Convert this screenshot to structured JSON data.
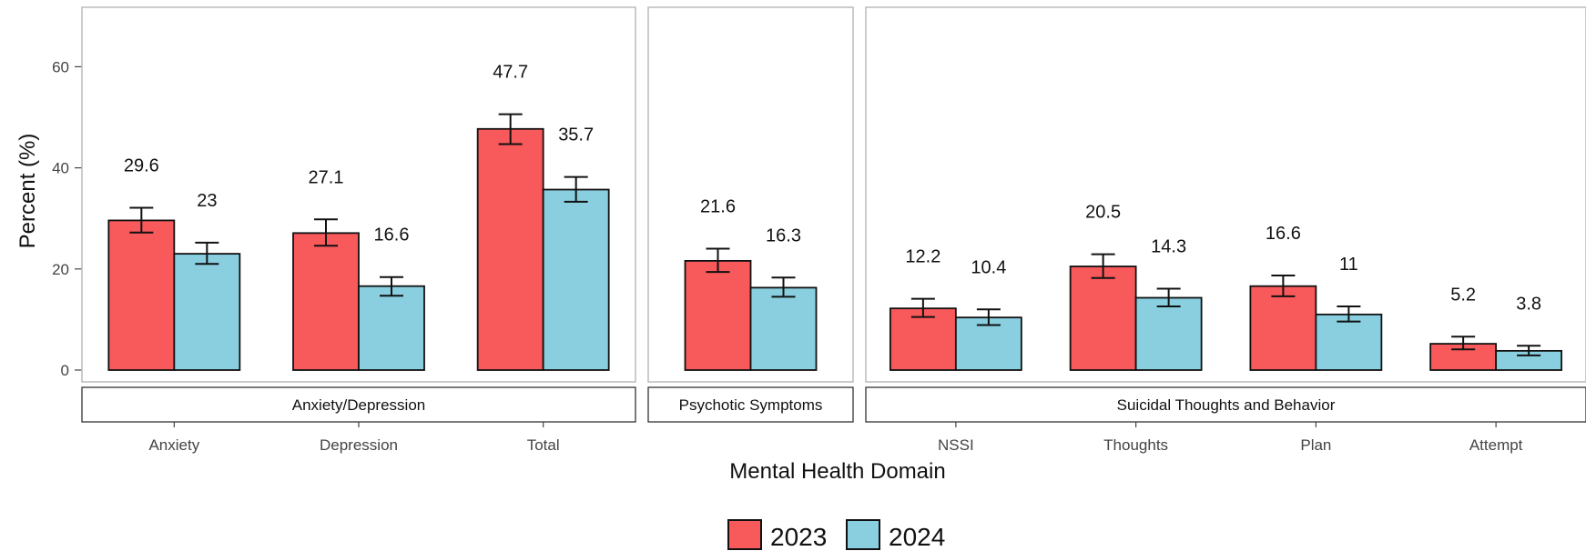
{
  "chart_data": {
    "type": "bar",
    "xlabel": "Mental Health Domain",
    "ylabel": "Percent (%)",
    "ylim": [
      0,
      60
    ],
    "yticks": [
      0,
      20,
      40,
      60
    ],
    "grid": false,
    "legend_position": "bottom",
    "colors": {
      "2023": "#f8595a",
      "2024": "#89cfe0"
    },
    "series": [
      {
        "name": "2023",
        "color": "#f8595a"
      },
      {
        "name": "2024",
        "color": "#89cfe0"
      }
    ],
    "panels": [
      {
        "label": "Anxiety/Depression",
        "categories": [
          {
            "name": "Anxiety",
            "values": [
              29.6,
              23
            ],
            "error": [
              [
                27.2,
                32.1
              ],
              [
                21.0,
                25.2
              ]
            ],
            "labels": [
              "29.6",
              "23"
            ]
          },
          {
            "name": "Depression",
            "values": [
              27.1,
              16.6
            ],
            "error": [
              [
                24.6,
                29.8
              ],
              [
                14.7,
                18.4
              ]
            ],
            "labels": [
              "27.1",
              "16.6"
            ]
          },
          {
            "name": "Total",
            "values": [
              47.7,
              35.7
            ],
            "error": [
              [
                44.7,
                50.6
              ],
              [
                33.3,
                38.2
              ]
            ],
            "labels": [
              "47.7",
              "35.7"
            ]
          }
        ]
      },
      {
        "label": "Psychotic Symptoms",
        "categories": [
          {
            "name": "",
            "values": [
              21.6,
              16.3
            ],
            "error": [
              [
                19.4,
                24.0
              ],
              [
                14.5,
                18.3
              ]
            ],
            "labels": [
              "21.6",
              "16.3"
            ]
          }
        ]
      },
      {
        "label": "Suicidal Thoughts and Behavior",
        "categories": [
          {
            "name": "NSSI",
            "values": [
              12.2,
              10.4
            ],
            "error": [
              [
                10.5,
                14.1
              ],
              [
                8.9,
                12.0
              ]
            ],
            "labels": [
              "12.2",
              "10.4"
            ]
          },
          {
            "name": "Thoughts",
            "values": [
              20.5,
              14.3
            ],
            "error": [
              [
                18.2,
                22.9
              ],
              [
                12.6,
                16.1
              ]
            ],
            "labels": [
              "20.5",
              "14.3"
            ]
          },
          {
            "name": "Plan",
            "values": [
              16.6,
              11
            ],
            "error": [
              [
                14.6,
                18.7
              ],
              [
                9.6,
                12.6
              ]
            ],
            "labels": [
              "16.6",
              "11"
            ]
          },
          {
            "name": "Attempt",
            "values": [
              5.2,
              3.8
            ],
            "error": [
              [
                4.1,
                6.6
              ],
              [
                2.9,
                4.8
              ]
            ],
            "labels": [
              "5.2",
              "3.8"
            ]
          }
        ]
      }
    ]
  }
}
